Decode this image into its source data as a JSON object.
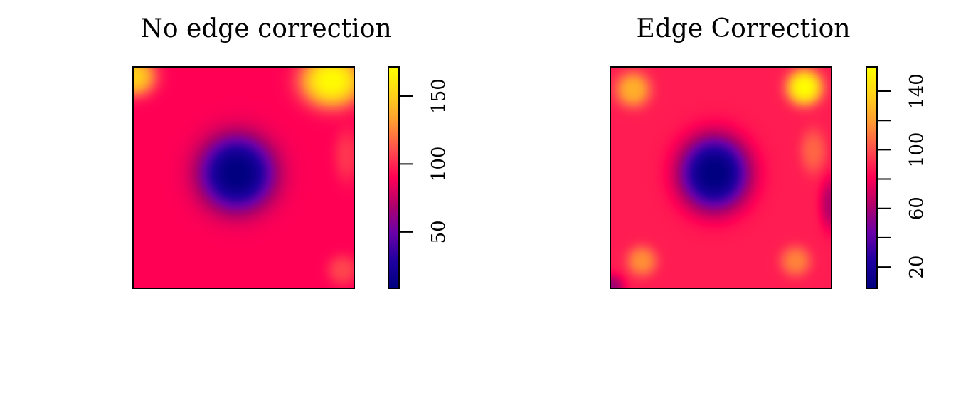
{
  "chart_data": [
    {
      "type": "heatmap",
      "title": "No edge correction",
      "xlabel": "",
      "ylabel": "",
      "colorbar": {
        "range": [
          8,
          172
        ],
        "ticks": [
          50,
          100,
          150
        ],
        "tick_labels": [
          "50",
          "100",
          "150"
        ]
      },
      "colormap": [
        "#000080",
        "#2000a0",
        "#6a00a8",
        "#b0006a",
        "#ff0055",
        "#ff4d4d",
        "#ff9933",
        "#ffd21a",
        "#ffff00"
      ],
      "field": {
        "base": 90,
        "features": [
          {
            "x": 0.47,
            "y": 0.48,
            "amp": -82,
            "sx": 0.17,
            "sy": 0.17
          },
          {
            "x": 0.9,
            "y": 0.06,
            "amp": 80,
            "sx": 0.14,
            "sy": 0.12
          },
          {
            "x": 0.0,
            "y": 0.04,
            "amp": 60,
            "sx": 0.1,
            "sy": 0.09
          },
          {
            "x": 0.95,
            "y": 0.92,
            "amp": 18,
            "sx": 0.07,
            "sy": 0.07
          },
          {
            "x": 0.97,
            "y": 0.4,
            "amp": 14,
            "sx": 0.06,
            "sy": 0.12
          }
        ]
      }
    },
    {
      "type": "heatmap",
      "title": "Edge Correction",
      "xlabel": "",
      "ylabel": "",
      "colorbar": {
        "range": [
          5,
          157
        ],
        "ticks": [
          20,
          40,
          60,
          80,
          100,
          120,
          140
        ],
        "tick_labels": [
          "20",
          "",
          "60",
          "",
          "100",
          "",
          "140"
        ]
      },
      "colormap": [
        "#000080",
        "#2000a0",
        "#6a00a8",
        "#b0006a",
        "#ff0055",
        "#ff4d4d",
        "#ff9933",
        "#ffd21a",
        "#ffff00"
      ],
      "field": {
        "base": 88,
        "features": [
          {
            "x": 0.47,
            "y": 0.48,
            "amp": -83,
            "sx": 0.16,
            "sy": 0.17
          },
          {
            "x": 0.88,
            "y": 0.09,
            "amp": 68,
            "sx": 0.08,
            "sy": 0.08
          },
          {
            "x": 0.1,
            "y": 0.1,
            "amp": 38,
            "sx": 0.08,
            "sy": 0.08
          },
          {
            "x": 0.14,
            "y": 0.88,
            "amp": 28,
            "sx": 0.07,
            "sy": 0.07
          },
          {
            "x": 0.84,
            "y": 0.88,
            "amp": 25,
            "sx": 0.07,
            "sy": 0.07
          },
          {
            "x": 0.92,
            "y": 0.38,
            "amp": 18,
            "sx": 0.06,
            "sy": 0.1
          },
          {
            "x": 0.0,
            "y": 1.0,
            "amp": -30,
            "sx": 0.06,
            "sy": 0.06
          },
          {
            "x": 1.0,
            "y": 0.62,
            "amp": -25,
            "sx": 0.05,
            "sy": 0.12
          }
        ]
      }
    }
  ]
}
